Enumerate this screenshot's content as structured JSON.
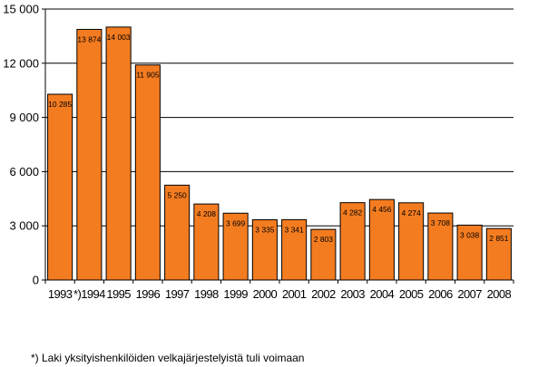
{
  "chart_data": {
    "type": "bar",
    "categories": [
      "1993",
      "*)1994",
      "1995",
      "1996",
      "1997",
      "1998",
      "1999",
      "2000",
      "2001",
      "2002",
      "2003",
      "2004",
      "2005",
      "2006",
      "2007",
      "2008"
    ],
    "values": [
      10285,
      13874,
      14003,
      11905,
      5250,
      4208,
      3699,
      3335,
      3341,
      2803,
      4282,
      4456,
      4274,
      3708,
      3038,
      2851
    ],
    "value_labels": [
      "10 285",
      "13 874",
      "14 003",
      "11 905",
      "5 250",
      "4 208",
      "3 699",
      "3 335",
      "3 341",
      "2 803",
      "4 282",
      "4 456",
      "4 274",
      "3 708",
      "3 038",
      "2 851"
    ],
    "ylim": [
      0,
      15000
    ],
    "yticks": [
      0,
      3000,
      6000,
      9000,
      12000,
      15000
    ],
    "ytick_labels": [
      "0",
      "3 000",
      "6 000",
      "9 000",
      "12 000",
      "15 000"
    ],
    "grid": true,
    "bar_color": "#f47c20",
    "bar_edge_color": "#000000",
    "legend": "none"
  },
  "footnote": "*) Laki yksityishenkilöiden velkajärjestelyistä tuli voimaan"
}
